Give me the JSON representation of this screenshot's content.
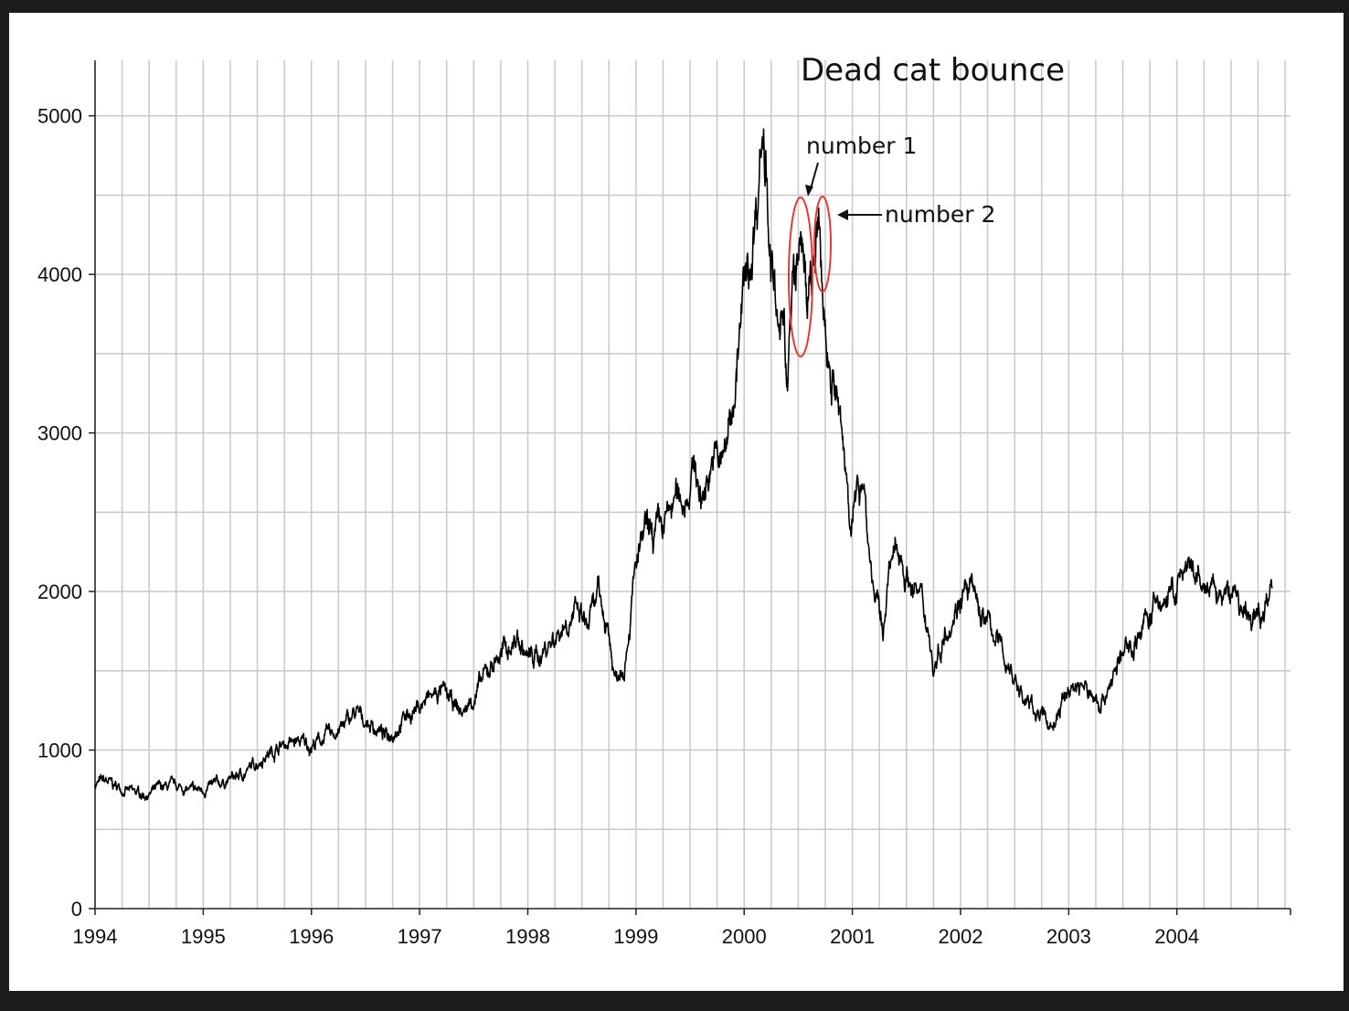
{
  "chart_data": {
    "type": "line",
    "title": "Dead cat bounce",
    "xlabel": "",
    "ylabel": "",
    "x_ticks": [
      "1994",
      "1995",
      "1996",
      "1997",
      "1998",
      "1999",
      "2000",
      "2001",
      "2002",
      "2003",
      "2004"
    ],
    "y_ticks": [
      "0",
      "1000",
      "2000",
      "3000",
      "4000",
      "5000"
    ],
    "xlim": [
      1994.0,
      2005.05
    ],
    "ylim": [
      0,
      5350
    ],
    "grid": true,
    "series": [
      {
        "x": [
          1994.0,
          1994.1,
          1994.2,
          1994.35,
          1994.5,
          1994.6,
          1994.75,
          1994.9,
          1995.0,
          1995.2,
          1995.4,
          1995.55,
          1995.75,
          1995.9,
          1996.0,
          1996.15,
          1996.3,
          1996.4,
          1996.55,
          1996.7,
          1996.85,
          1997.0,
          1997.1,
          1997.2,
          1997.3,
          1997.4,
          1997.55,
          1997.7,
          1997.8,
          1997.9,
          1998.0,
          1998.1,
          1998.25,
          1998.4,
          1998.48,
          1998.55,
          1998.65,
          1998.75,
          1998.8,
          1998.9,
          1999.0,
          1999.08,
          1999.15,
          1999.25,
          1999.35,
          1999.45,
          1999.55,
          1999.6,
          1999.7,
          1999.8,
          1999.9,
          2000.0,
          2000.05,
          2000.12,
          2000.16,
          2000.2,
          2000.25,
          2000.3,
          2000.33,
          2000.37,
          2000.4,
          2000.45,
          2000.5,
          2000.55,
          2000.58,
          2000.62,
          2000.66,
          2000.7,
          2000.72,
          2000.76,
          2000.8,
          2000.85,
          2000.9,
          2000.95,
          2001.0,
          2001.05,
          2001.1,
          2001.15,
          2001.2,
          2001.25,
          2001.28,
          2001.32,
          2001.38,
          2001.45,
          2001.5,
          2001.6,
          2001.7,
          2001.75,
          2001.85,
          2001.95,
          2002.0,
          2002.1,
          2002.2,
          2002.3,
          2002.4,
          2002.5,
          2002.6,
          2002.7,
          2002.77,
          2002.85,
          2002.95,
          2003.0,
          2003.1,
          2003.2,
          2003.3,
          2003.4,
          2003.5,
          2003.6,
          2003.7,
          2003.8,
          2003.9,
          2004.0,
          2004.05,
          2004.15,
          2004.25,
          2004.35,
          2004.45,
          2004.55,
          2004.6,
          2004.7,
          2004.8,
          2004.88
        ],
        "y": [
          790,
          800,
          770,
          730,
          720,
          760,
          770,
          740,
          750,
          800,
          860,
          960,
          1040,
          1050,
          1030,
          1090,
          1150,
          1230,
          1160,
          1080,
          1200,
          1280,
          1330,
          1370,
          1290,
          1230,
          1390,
          1580,
          1630,
          1700,
          1580,
          1590,
          1720,
          1860,
          1840,
          1770,
          1960,
          1750,
          1450,
          1600,
          2150,
          2350,
          2330,
          2390,
          2560,
          2600,
          2800,
          2550,
          2850,
          2800,
          3200,
          3900,
          4000,
          4500,
          4950,
          4800,
          4100,
          3700,
          3500,
          3800,
          3300,
          3900,
          4050,
          4220,
          3700,
          3950,
          4100,
          4200,
          3900,
          3600,
          3400,
          3250,
          2950,
          2700,
          2450,
          2600,
          2800,
          2300,
          2000,
          1850,
          1700,
          2050,
          2200,
          2250,
          2100,
          2000,
          1800,
          1500,
          1750,
          1900,
          2000,
          2000,
          1850,
          1750,
          1600,
          1450,
          1300,
          1250,
          1200,
          1150,
          1300,
          1380,
          1420,
          1350,
          1300,
          1450,
          1600,
          1680,
          1800,
          1900,
          1950,
          2000,
          2130,
          2080,
          2020,
          1990,
          1960,
          2020,
          1850,
          1800,
          1920,
          2020
        ]
      }
    ],
    "annotations": [
      {
        "text": "number 1",
        "x": 2000.5,
        "y": 4270
      },
      {
        "text": "number 2",
        "x": 2000.68,
        "y": 4230
      }
    ]
  },
  "colors": {
    "line": "#000000",
    "grid": "#c8c8c8",
    "axis": "#222222",
    "highlight": "#e53935"
  }
}
